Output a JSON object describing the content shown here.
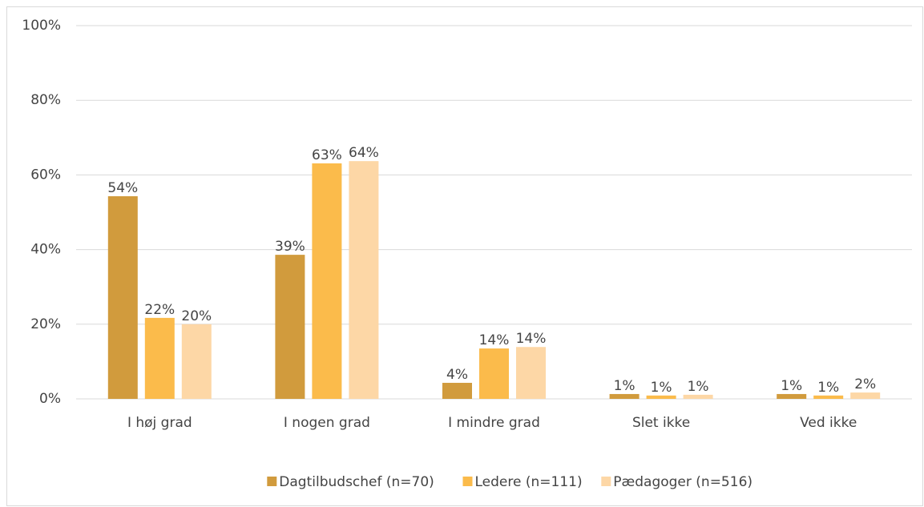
{
  "chart_data": {
    "type": "bar",
    "categories": [
      "I høj grad",
      "I nogen grad",
      "I mindre grad",
      "Slet ikke",
      "Ved ikke"
    ],
    "series": [
      {
        "name": "Dagtilbudschef (n=70)",
        "color": "#d19b3d",
        "values": [
          54.3,
          38.6,
          4.3,
          1.3,
          1.3
        ],
        "value_labels": [
          "54%",
          "39%",
          "4%",
          "1%",
          "1%"
        ]
      },
      {
        "name": "Ledere (n=111)",
        "color": "#fbbb4b",
        "values": [
          21.7,
          63.1,
          13.5,
          0.9,
          0.9
        ],
        "value_labels": [
          "22%",
          "63%",
          "14%",
          "1%",
          "1%"
        ]
      },
      {
        "name": "Pædagoger (n=516)",
        "color": "#fdd7a6",
        "values": [
          20.0,
          63.7,
          13.9,
          1.1,
          1.7
        ],
        "value_labels": [
          "20%",
          "64%",
          "14%",
          "1%",
          "2%"
        ]
      }
    ],
    "ylim": [
      0,
      100
    ],
    "yticks": [
      {
        "value": 0,
        "label": "0%"
      },
      {
        "value": 20,
        "label": "20%"
      },
      {
        "value": 40,
        "label": "40%"
      },
      {
        "value": 60,
        "label": "60%"
      },
      {
        "value": 80,
        "label": "80%"
      },
      {
        "value": 100,
        "label": "100%"
      }
    ],
    "grid": true,
    "legend": "bottom"
  }
}
